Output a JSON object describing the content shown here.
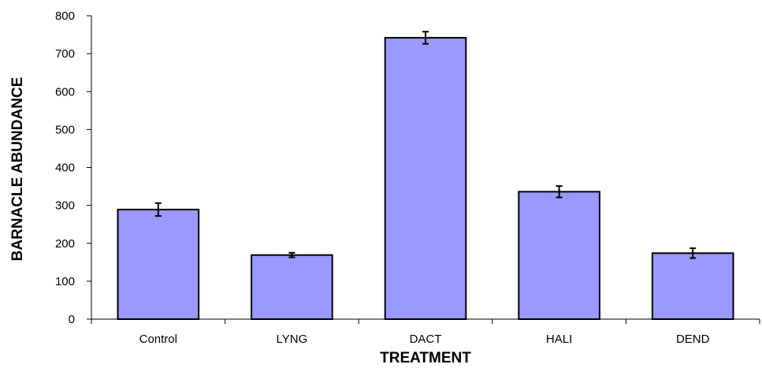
{
  "chart_data": {
    "type": "bar",
    "categories": [
      "Control",
      "LYNG",
      "DACT",
      "HALI",
      "DEND"
    ],
    "values": [
      289,
      169,
      742,
      336,
      174
    ],
    "error": [
      17,
      6,
      16,
      15,
      13
    ],
    "xlabel": "TREATMENT",
    "ylabel": "BARNACLE ABUNDANCE",
    "ylim": [
      0,
      800
    ],
    "yticks": [
      0,
      100,
      200,
      300,
      400,
      500,
      600,
      700,
      800
    ],
    "grid": false,
    "legend": "none",
    "colors": {
      "bar_fill": "#9999ff",
      "bar_stroke": "#000000",
      "axis": "#000000"
    }
  }
}
